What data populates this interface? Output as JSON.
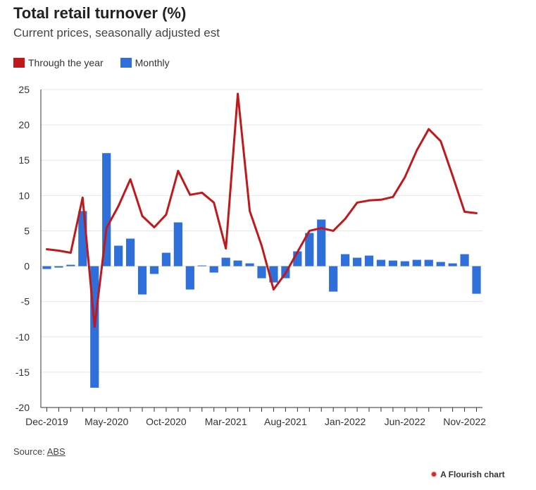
{
  "chart_data": {
    "type": "bar+line",
    "title": "Total retail turnover (%)",
    "subtitle": "Current prices, seasonally adjusted est",
    "ylim": [
      -20,
      25
    ],
    "yticks": [
      25,
      20,
      15,
      10,
      5,
      0,
      -5,
      -10,
      -15,
      -20
    ],
    "xtick_labels": [
      "Dec-2019",
      "May-2020",
      "Oct-2020",
      "Mar-2021",
      "Aug-2021",
      "Jan-2022",
      "Jun-2022",
      "Nov-2022"
    ],
    "xtick_indices": [
      0,
      5,
      10,
      15,
      20,
      25,
      30,
      35
    ],
    "grid": true,
    "legend_position": "top-left",
    "categories": [
      "Dec-2019",
      "Jan-2020",
      "Feb-2020",
      "Mar-2020",
      "Apr-2020",
      "May-2020",
      "Jun-2020",
      "Jul-2020",
      "Aug-2020",
      "Sep-2020",
      "Oct-2020",
      "Nov-2020",
      "Dec-2020",
      "Jan-2021",
      "Feb-2021",
      "Mar-2021",
      "Apr-2021",
      "May-2021",
      "Jun-2021",
      "Jul-2021",
      "Aug-2021",
      "Sep-2021",
      "Oct-2021",
      "Nov-2021",
      "Dec-2021",
      "Jan-2022",
      "Feb-2022",
      "Mar-2022",
      "Apr-2022",
      "May-2022",
      "Jun-2022",
      "Jul-2022",
      "Aug-2022",
      "Sep-2022",
      "Oct-2022",
      "Nov-2022",
      "Dec-2022"
    ],
    "series": [
      {
        "name": "Monthly",
        "type": "bar",
        "color": "#2e6fd9",
        "values": [
          -0.4,
          -0.2,
          0.2,
          7.8,
          -17.2,
          16.0,
          2.9,
          3.9,
          -4.0,
          -1.1,
          1.9,
          6.2,
          -3.3,
          0.1,
          -0.9,
          1.2,
          0.8,
          0.4,
          -1.7,
          -2.3,
          -1.7,
          2.1,
          4.7,
          6.6,
          -3.6,
          1.7,
          1.2,
          1.5,
          0.9,
          0.8,
          0.7,
          0.9,
          0.9,
          0.6,
          0.4,
          1.7,
          -3.9
        ]
      },
      {
        "name": "Through the year",
        "type": "line",
        "color": "#c0191c",
        "values": [
          2.4,
          2.2,
          1.9,
          9.7,
          -8.6,
          5.4,
          8.5,
          12.3,
          7.1,
          5.5,
          7.3,
          13.5,
          10.1,
          10.4,
          9.0,
          2.5,
          24.4,
          7.8,
          2.9,
          -3.3,
          -1.0,
          2.0,
          5.0,
          5.4,
          5.0,
          6.7,
          9.0,
          9.3,
          9.4,
          9.8,
          12.6,
          16.4,
          19.4,
          17.7,
          12.8,
          7.7,
          7.5
        ]
      }
    ]
  },
  "legend": {
    "through_the_year": "Through the year",
    "monthly": "Monthly"
  },
  "footer": {
    "source_prefix": "Source: ",
    "source_link": "ABS",
    "credit": "A Flourish chart"
  }
}
